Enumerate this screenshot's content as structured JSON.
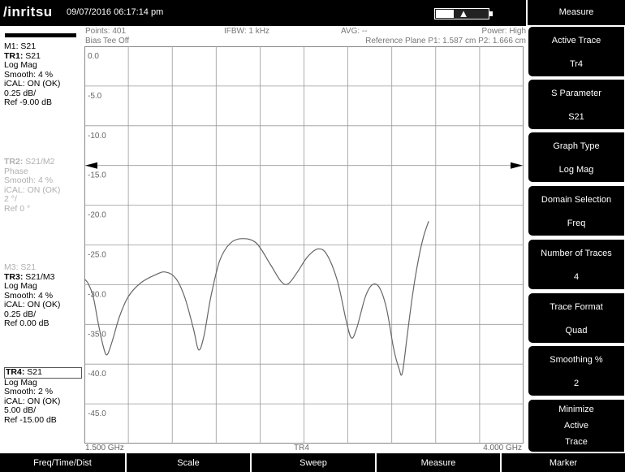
{
  "header": {
    "logo": "/inritsu",
    "datetime": "09/07/2016 06:17:14 pm"
  },
  "info": {
    "points": "Points: 401",
    "bias_tee": "Bias Tee Off",
    "ifbw": "IFBW: 1 kHz",
    "avg": "AVG: --",
    "power": "Power: High",
    "ref_plane": "Reference Plane P1: 1.587 cm P2: 1.666 cm"
  },
  "left": {
    "m1": "M1: S21",
    "tr1": [
      {
        "bold": "TR1:",
        "rest": " S21"
      },
      "Log Mag",
      "Smooth: 4 %",
      "iCAL: ON (OK)",
      "0.25 dB/",
      "Ref -9.00 dB"
    ],
    "tr2": [
      {
        "bold": "TR2:",
        "rest": " S21/M2"
      },
      "Phase",
      "Smooth: 4 %",
      "iCAL: ON (OK)",
      "2 °/",
      "Ref 0 °"
    ],
    "m3": "M3: S21",
    "tr3": [
      {
        "bold": "TR3:",
        "rest": " S21/M3"
      },
      "Log Mag",
      "Smooth: 4 %",
      "iCAL: ON (OK)",
      "0.25 dB/",
      "Ref 0.00 dB"
    ],
    "tr4": [
      {
        "bold": "TR4:",
        "rest": " S21"
      },
      "Log Mag",
      "Smooth: 2 %",
      "iCAL: ON (OK)",
      "5.00 dB/",
      "Ref -15.00 dB"
    ]
  },
  "plot": {
    "y_labels": [
      "0.0",
      "-5.0",
      "-10.0",
      "-15.0",
      "-20.0",
      "-25.0",
      "-30.0",
      "-35.0",
      "-40.0",
      "-45.0"
    ],
    "x_start": "1.500 GHz",
    "x_center": "TR4",
    "x_stop": "4.000 GHz",
    "trace_color": "#666666",
    "trace": [
      [
        1.5,
        -29.3
      ],
      [
        1.52,
        -29.8
      ],
      [
        1.55,
        -31.5
      ],
      [
        1.58,
        -35.0
      ],
      [
        1.61,
        -38.0
      ],
      [
        1.63,
        -38.8
      ],
      [
        1.66,
        -37.0
      ],
      [
        1.7,
        -34.0
      ],
      [
        1.75,
        -31.5
      ],
      [
        1.82,
        -29.8
      ],
      [
        1.9,
        -28.8
      ],
      [
        1.96,
        -28.4
      ],
      [
        2.02,
        -29.2
      ],
      [
        2.07,
        -31.5
      ],
      [
        2.12,
        -35.5
      ],
      [
        2.15,
        -38.2
      ],
      [
        2.18,
        -36.5
      ],
      [
        2.22,
        -31.5
      ],
      [
        2.27,
        -27.0
      ],
      [
        2.33,
        -24.8
      ],
      [
        2.4,
        -24.2
      ],
      [
        2.48,
        -24.8
      ],
      [
        2.56,
        -27.5
      ],
      [
        2.62,
        -29.6
      ],
      [
        2.66,
        -29.9
      ],
      [
        2.71,
        -28.5
      ],
      [
        2.77,
        -26.5
      ],
      [
        2.83,
        -25.5
      ],
      [
        2.88,
        -26.2
      ],
      [
        2.94,
        -29.5
      ],
      [
        2.99,
        -34.5
      ],
      [
        3.02,
        -36.7
      ],
      [
        3.05,
        -35.5
      ],
      [
        3.1,
        -31.5
      ],
      [
        3.14,
        -30.0
      ],
      [
        3.18,
        -30.4
      ],
      [
        3.22,
        -33.0
      ],
      [
        3.26,
        -38.0
      ],
      [
        3.29,
        -40.5
      ],
      [
        3.31,
        -41.1
      ],
      [
        3.34,
        -36.0
      ],
      [
        3.37,
        -31.0
      ],
      [
        3.4,
        -27.0
      ],
      [
        3.43,
        -24.0
      ],
      [
        3.46,
        -22.0
      ]
    ]
  },
  "softkeys": {
    "title": "Measure",
    "keys": [
      {
        "line1": "Active Trace",
        "line2": "Tr4"
      },
      {
        "line1": "S Parameter",
        "line2": "S21"
      },
      {
        "line1": "Graph Type",
        "line2": "Log Mag"
      },
      {
        "line1": "Domain Selection",
        "line2": "Freq"
      },
      {
        "line1": "Number of Traces",
        "line2": "4"
      },
      {
        "line1": "Trace Format",
        "line2": "Quad"
      },
      {
        "line1": "Smoothing %",
        "line2": "2"
      }
    ],
    "last": [
      "Minimize",
      "Active",
      "Trace"
    ]
  },
  "menubar": [
    "Freq/Time/Dist",
    "Scale",
    "Sweep",
    "Measure",
    "Marker"
  ]
}
